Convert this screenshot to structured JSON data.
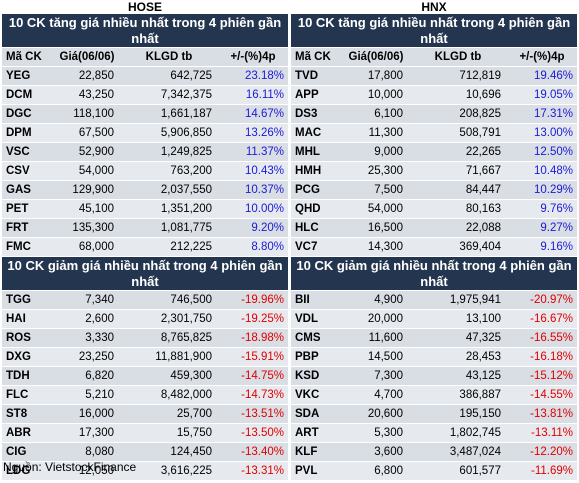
{
  "columns": {
    "code": "Mã CK",
    "price": "Giá(06/06)",
    "volume": "KLGD tb",
    "change": "+/-(%)4p"
  },
  "source": "Nguồn: VietstockFinance",
  "colors": {
    "header_bg": "#24364f",
    "up": "#1a1ad6",
    "down": "#e00000"
  },
  "hose": {
    "exchange": "HOSE",
    "gain_title": "10 CK tăng giá nhiều nhất trong 4 phiên gần nhất",
    "loss_title": "10 CK giảm giá nhiều nhất trong 4 phiên gần nhất",
    "gainers": [
      {
        "code": "YEG",
        "price": "22,850",
        "volume": "642,725",
        "change": "23.18%"
      },
      {
        "code": "DCM",
        "price": "43,250",
        "volume": "7,342,375",
        "change": "16.11%"
      },
      {
        "code": "DGC",
        "price": "118,100",
        "volume": "1,661,187",
        "change": "14.67%"
      },
      {
        "code": "DPM",
        "price": "67,500",
        "volume": "5,906,850",
        "change": "13.26%"
      },
      {
        "code": "VSC",
        "price": "52,900",
        "volume": "1,249,825",
        "change": "11.37%"
      },
      {
        "code": "CSV",
        "price": "54,000",
        "volume": "763,200",
        "change": "10.43%"
      },
      {
        "code": "GAS",
        "price": "129,900",
        "volume": "2,037,550",
        "change": "10.37%"
      },
      {
        "code": "PET",
        "price": "45,100",
        "volume": "1,351,200",
        "change": "10.00%"
      },
      {
        "code": "FRT",
        "price": "135,300",
        "volume": "1,081,775",
        "change": "9.20%"
      },
      {
        "code": "FMC",
        "price": "68,000",
        "volume": "212,225",
        "change": "8.80%"
      }
    ],
    "losers": [
      {
        "code": "TGG",
        "price": "7,340",
        "volume": "746,500",
        "change": "-19.96%"
      },
      {
        "code": "HAI",
        "price": "2,600",
        "volume": "2,301,750",
        "change": "-19.25%"
      },
      {
        "code": "ROS",
        "price": "3,330",
        "volume": "8,765,825",
        "change": "-18.98%"
      },
      {
        "code": "DXG",
        "price": "23,250",
        "volume": "11,881,900",
        "change": "-15.91%"
      },
      {
        "code": "TDH",
        "price": "6,820",
        "volume": "459,300",
        "change": "-14.75%"
      },
      {
        "code": "FLC",
        "price": "5,210",
        "volume": "8,482,000",
        "change": "-14.73%"
      },
      {
        "code": "ST8",
        "price": "16,000",
        "volume": "25,700",
        "change": "-13.51%"
      },
      {
        "code": "ABR",
        "price": "17,300",
        "volume": "15,750",
        "change": "-13.50%"
      },
      {
        "code": "CIG",
        "price": "8,080",
        "volume": "124,450",
        "change": "-13.40%"
      },
      {
        "code": "LDG",
        "price": "12,050",
        "volume": "3,616,225",
        "change": "-13.31%"
      }
    ]
  },
  "hnx": {
    "exchange": "HNX",
    "gain_title": "10 CK tăng giá nhiều nhất trong 4 phiên gần nhất",
    "loss_title": "10 CK giảm giá nhiều nhất trong 4 phiên gần nhất",
    "gainers": [
      {
        "code": "TVD",
        "price": "17,800",
        "volume": "712,819",
        "change": "19.46%"
      },
      {
        "code": "APP",
        "price": "10,000",
        "volume": "10,696",
        "change": "19.05%"
      },
      {
        "code": "DS3",
        "price": "6,100",
        "volume": "208,825",
        "change": "17.31%"
      },
      {
        "code": "MAC",
        "price": "11,300",
        "volume": "508,791",
        "change": "13.00%"
      },
      {
        "code": "MHL",
        "price": "9,000",
        "volume": "22,265",
        "change": "12.50%"
      },
      {
        "code": "HMH",
        "price": "25,300",
        "volume": "71,667",
        "change": "10.48%"
      },
      {
        "code": "PCG",
        "price": "7,500",
        "volume": "84,447",
        "change": "10.29%"
      },
      {
        "code": "QHD",
        "price": "54,000",
        "volume": "80,163",
        "change": "9.76%"
      },
      {
        "code": "HLC",
        "price": "16,500",
        "volume": "22,088",
        "change": "9.27%"
      },
      {
        "code": "VC7",
        "price": "14,300",
        "volume": "369,404",
        "change": "9.16%"
      }
    ],
    "losers": [
      {
        "code": "BII",
        "price": "4,900",
        "volume": "1,975,941",
        "change": "-20.97%"
      },
      {
        "code": "VDL",
        "price": "20,000",
        "volume": "13,100",
        "change": "-16.67%"
      },
      {
        "code": "CMS",
        "price": "11,600",
        "volume": "47,325",
        "change": "-16.55%"
      },
      {
        "code": "PBP",
        "price": "14,500",
        "volume": "28,453",
        "change": "-16.18%"
      },
      {
        "code": "KSD",
        "price": "7,300",
        "volume": "43,125",
        "change": "-15.12%"
      },
      {
        "code": "VKC",
        "price": "4,700",
        "volume": "386,887",
        "change": "-14.55%"
      },
      {
        "code": "SDA",
        "price": "20,600",
        "volume": "195,150",
        "change": "-13.81%"
      },
      {
        "code": "ART",
        "price": "5,300",
        "volume": "1,802,745",
        "change": "-13.11%"
      },
      {
        "code": "KLF",
        "price": "3,600",
        "volume": "3,487,024",
        "change": "-12.20%"
      },
      {
        "code": "PVL",
        "price": "6,800",
        "volume": "601,577",
        "change": "-11.69%"
      }
    ]
  }
}
